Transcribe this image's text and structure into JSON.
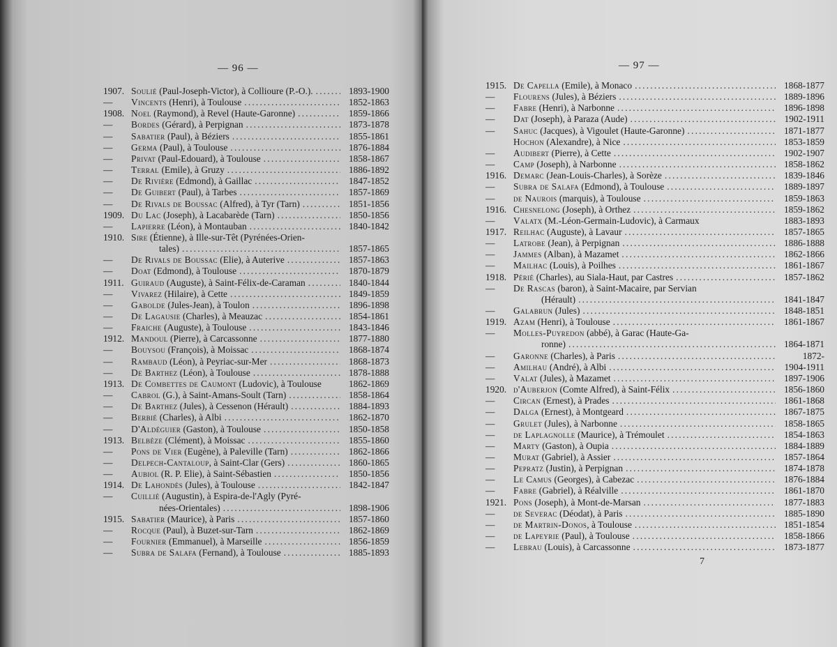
{
  "left_page": {
    "page_number": "— 96 —",
    "entries": [
      {
        "year": "1907.",
        "surname": "Soulié",
        "rest": " (Paul-Joseph-Victor), à Collioure (P.-O.).",
        "dates": "1893-1900"
      },
      {
        "year": "—",
        "surname": "Vincents",
        "rest": " (Henri), à Toulouse",
        "dates": "1852-1863"
      },
      {
        "year": "1908.",
        "surname": "Noel",
        "rest": " (Raymond), à Revel (Haute-Garonne)",
        "dates": "1859-1866"
      },
      {
        "year": "—",
        "surname": "Bordes",
        "rest": " (Gérard), à Perpignan",
        "dates": "1873-1878"
      },
      {
        "year": "—",
        "surname": "Sabatier",
        "rest": " (Paul), à Béziers",
        "dates": "1855-1861"
      },
      {
        "year": "—",
        "surname": "Germa",
        "rest": " (Paul), à Toulouse",
        "dates": "1876-1884"
      },
      {
        "year": "—",
        "surname": "Privat",
        "rest": " (Paul-Edouard), à Toulouse",
        "dates": "1858-1867"
      },
      {
        "year": "—",
        "surname": "Terral",
        "rest": " (Emile), à Gruzy",
        "dates": "1886-1892"
      },
      {
        "year": "—",
        "surname": "De Rivière",
        "rest": " (Edmond), à Gaillac",
        "dates": "1847-1852"
      },
      {
        "year": "—",
        "surname": "De Guibert",
        "rest": " (Paul), à Tarbes",
        "dates": "1857-1869"
      },
      {
        "year": "—",
        "surname": "De Rivals de Boussac",
        "rest": " (Alfred), à Tyr (Tarn)",
        "dates": "1851-1856"
      },
      {
        "year": "1909.",
        "surname": "Du Lac",
        "rest": " (Joseph), à Lacabarède (Tarn)",
        "dates": "1850-1856"
      },
      {
        "year": "—",
        "surname": "Lapierre",
        "rest": " (Léon), à Montauban",
        "dates": "1840-1842"
      },
      {
        "year": "1910.",
        "surname": "Sire",
        "rest": " (Étienne), à Ille-sur-Têt (Pyrénées-Orien-",
        "dates": "",
        "noleader": true
      },
      {
        "year": "",
        "surname": "",
        "rest": "tales)",
        "dates": "1857-1865",
        "indent": true
      },
      {
        "year": "—",
        "surname": "De Rivals de Boussac",
        "rest": " (Elie), à Auterive",
        "dates": "1857-1863"
      },
      {
        "year": "—",
        "surname": "Doat",
        "rest": " (Edmond), à Toulouse",
        "dates": "1870-1879"
      },
      {
        "year": "1911.",
        "surname": "Guiraud",
        "rest": " (Auguste), à Saint-Félix-de-Caraman",
        "dates": "1840-1844"
      },
      {
        "year": "—",
        "surname": "Vivarez",
        "rest": " (Hilaire), à Cette",
        "dates": "1849-1859"
      },
      {
        "year": "—",
        "surname": "Gabolde",
        "rest": " (Jules-Jean), à Toulon",
        "dates": "1896-1898"
      },
      {
        "year": "—",
        "surname": "De Lagausie",
        "rest": " (Charles), à Meauzac",
        "dates": "1854-1861"
      },
      {
        "year": "—",
        "surname": "Fraiche",
        "rest": " (Auguste), à Toulouse",
        "dates": "1843-1846"
      },
      {
        "year": "1912.",
        "surname": "Mandoul",
        "rest": " (Pierre), à Carcassonne",
        "dates": "1877-1880"
      },
      {
        "year": "—",
        "surname": "Bouysou",
        "rest": " (François), à Moissac",
        "dates": "1868-1874"
      },
      {
        "year": "—",
        "surname": "Rambaud",
        "rest": " (Léon), à Peyriac-sur-Mer",
        "dates": "1868-1873"
      },
      {
        "year": "—",
        "surname": "De Barthez",
        "rest": " (Léon), à Toulouse",
        "dates": "1878-1888"
      },
      {
        "year": "1913.",
        "surname": "De Combettes de Caumont",
        "rest": " (Ludovic), à Toulouse",
        "dates": "1862-1869",
        "noleader": true
      },
      {
        "year": "—",
        "surname": "Cabrol",
        "rest": " (G.), à Saint-Amans-Soult (Tarn)",
        "dates": "1858-1864"
      },
      {
        "year": "—",
        "surname": "De Barthez",
        "rest": " (Jules), à Cessenon (Hérault)",
        "dates": "1884-1893"
      },
      {
        "year": "—",
        "surname": "Berbié",
        "rest": " (Charles), à Albi",
        "dates": "1862-1870"
      },
      {
        "year": "—",
        "surname": "D'Aldéguier",
        "rest": " (Gaston), à Toulouse",
        "dates": "1850-1858"
      },
      {
        "year": "1913.",
        "surname": "Belbèze",
        "rest": " (Clément), à Moissac",
        "dates": "1855-1860"
      },
      {
        "year": "—",
        "surname": "Pons de Vier",
        "rest": " (Eugène), à Paleville (Tarn)",
        "dates": "1862-1866"
      },
      {
        "year": "—",
        "surname": "Delpech-Cantaloup",
        "rest": ", à Saint-Clar (Gers)",
        "dates": "1860-1865"
      },
      {
        "year": "—",
        "surname": "Aubiol",
        "rest": " (R. P. Elie), à Saint-Sébastien",
        "dates": "1850-1856"
      },
      {
        "year": "1914.",
        "surname": "De Lahondès",
        "rest": " (Jules), à Toulouse",
        "dates": "1842-1847"
      },
      {
        "year": "—",
        "surname": "Cuillié",
        "rest": " (Augustin), à Espira-de-l'Agly (Pyré-",
        "dates": "",
        "noleader": true
      },
      {
        "year": "",
        "surname": "",
        "rest": "nées-Orientales)",
        "dates": "1898-1906",
        "indent": true
      },
      {
        "year": "1915.",
        "surname": "Sabatier",
        "rest": " (Maurice), à Paris",
        "dates": "1857-1860"
      },
      {
        "year": "—",
        "surname": "Rocque",
        "rest": " (Paul), à Buzet-sur-Tarn",
        "dates": "1862-1869"
      },
      {
        "year": "—",
        "surname": "Fournier",
        "rest": " (Emmanuel), à Marseille",
        "dates": "1856-1859"
      },
      {
        "year": "—",
        "surname": "Subra de Salafa",
        "rest": " (Fernand), à Toulouse",
        "dates": "1885-1893"
      }
    ]
  },
  "right_page": {
    "page_number": "— 97 —",
    "signature_mark": "7",
    "entries": [
      {
        "year": "1915.",
        "surname": "De Capella",
        "rest": " (Emile), à Monaco",
        "dates": "1868-1877"
      },
      {
        "year": "—",
        "surname": "Flourens",
        "rest": " (Jules), à Béziers",
        "dates": "1889-1896"
      },
      {
        "year": "—",
        "surname": "Fabre",
        "rest": " (Henri), à Narbonne",
        "dates": "1896-1898"
      },
      {
        "year": "—",
        "surname": "Dat",
        "rest": " (Joseph), à Paraza (Aude)",
        "dates": "1902-1911"
      },
      {
        "year": "—",
        "surname": "Sahuc",
        "rest": " (Jacques), à Vigoulet (Haute-Garonne)",
        "dates": "1871-1877"
      },
      {
        "year": "",
        "surname": "Hochon",
        "rest": " (Alexandre), à Nice",
        "dates": "1853-1859"
      },
      {
        "year": "—",
        "surname": "Audibert",
        "rest": " (Pierre), à Cette",
        "dates": "1902-1907"
      },
      {
        "year": "—",
        "surname": "Camp",
        "rest": " (Joseph), à Narbonne",
        "dates": "1858-1862"
      },
      {
        "year": "1916.",
        "surname": "Demarc",
        "rest": " (Jean-Louis-Charles), à Sorèze",
        "dates": "1839-1846"
      },
      {
        "year": "—",
        "surname": "Subra de Salafa",
        "rest": " (Edmond), à Toulouse",
        "dates": "1889-1897"
      },
      {
        "year": "—",
        "surname": "de Naurois",
        "rest": " (marquis), à Toulouse",
        "dates": "1859-1863"
      },
      {
        "year": "1916.",
        "surname": "Chesnelong",
        "rest": " (Joseph), à Orthez",
        "dates": "1859-1862"
      },
      {
        "year": "—",
        "surname": "Valatx",
        "rest": " (M.-Léon-Germain-Ludovic), à Carmaux",
        "dates": "1883-1893",
        "noleader": true
      },
      {
        "year": "1917.",
        "surname": "Reilhac",
        "rest": " (Auguste), à Lavaur",
        "dates": "1857-1865"
      },
      {
        "year": "—",
        "surname": "Latrobe",
        "rest": " (Jean), à Perpignan",
        "dates": "1886-1888"
      },
      {
        "year": "—",
        "surname": "Jammes",
        "rest": " (Alban), à Mazamet",
        "dates": "1862-1866"
      },
      {
        "year": "—",
        "surname": "Mailhac",
        "rest": " (Louis), à Poilhes",
        "dates": "1861-1867"
      },
      {
        "year": "1918.",
        "surname": "Périé",
        "rest": " (Charles), au Siala-Haut, par Castres",
        "dates": "1857-1862"
      },
      {
        "year": "—",
        "surname": "De Rascas",
        "rest": " (baron), à Saint-Macaire, par Servian",
        "dates": "",
        "noleader": true
      },
      {
        "year": "",
        "surname": "",
        "rest": "(Hérault)",
        "dates": "1841-1847",
        "indent": true
      },
      {
        "year": "—",
        "surname": "Galabrun",
        "rest": " (Jules)",
        "dates": "1848-1851"
      },
      {
        "year": "1919.",
        "surname": "Azam",
        "rest": " (Henri), à Toulouse",
        "dates": "1861-1867"
      },
      {
        "year": "—",
        "surname": "Molles-Puyredon",
        "rest": " (abbé), à Garac (Haute-Ga-",
        "dates": "",
        "noleader": true
      },
      {
        "year": "",
        "surname": "",
        "rest": "ronne)",
        "dates": "1864-1871",
        "indent": true
      },
      {
        "year": "—",
        "surname": "Garonne",
        "rest": " (Charles), à Paris",
        "dates": "1872-"
      },
      {
        "year": "—",
        "surname": "Amilhau",
        "rest": " (André), à Albi",
        "dates": "1904-1911"
      },
      {
        "year": "—",
        "surname": "Valat",
        "rest": " (Jules), à Mazamet",
        "dates": "1897-1906"
      },
      {
        "year": "1920.",
        "surname": "d'Auberjon",
        "rest": " (Comte Alfred), à Saint-Félix",
        "dates": "1856-1860"
      },
      {
        "year": "—",
        "surname": "Circan",
        "rest": " (Ernest), à Prades",
        "dates": "1861-1868"
      },
      {
        "year": "—",
        "surname": "Dalga",
        "rest": " (Ernest), à Montgeard",
        "dates": "1867-1875"
      },
      {
        "year": "—",
        "surname": "Grulet",
        "rest": " (Jules), à Narbonne",
        "dates": "1858-1865"
      },
      {
        "year": "—",
        "surname": "de Laplagnolle",
        "rest": " (Maurice), à Trémoulet",
        "dates": "1854-1863"
      },
      {
        "year": "—",
        "surname": "Marty",
        "rest": " (Gaston), à Oupia",
        "dates": "1884-1889"
      },
      {
        "year": "—",
        "surname": "Murat",
        "rest": " (Gabriel), à Assier",
        "dates": "1857-1864"
      },
      {
        "year": "—",
        "surname": "Pepratz",
        "rest": " (Justin), à Perpignan",
        "dates": "1874-1878"
      },
      {
        "year": "—",
        "surname": "Le Camus",
        "rest": " (Georges), à Cabezac",
        "dates": "1876-1884"
      },
      {
        "year": "—",
        "surname": "Fabre",
        "rest": " (Gabriel), à Réalville",
        "dates": "1861-1870"
      },
      {
        "year": "1921.",
        "surname": "Pons",
        "rest": " (Joseph), à Mont-de-Marsan",
        "dates": "1877-1883"
      },
      {
        "year": "—",
        "surname": "de Severac",
        "rest": " (Déodat), à Paris",
        "dates": "1885-1890"
      },
      {
        "year": "—",
        "surname": "de Martrin-Donos",
        "rest": ", à Toulouse",
        "dates": "1851-1854"
      },
      {
        "year": "—",
        "surname": "de Lapeyrie",
        "rest": " (Paul), à Toulouse",
        "dates": "1858-1866"
      },
      {
        "year": "—",
        "surname": "Lebrau",
        "rest": " (Louis), à Carcassonne",
        "dates": "1873-1877"
      }
    ]
  }
}
